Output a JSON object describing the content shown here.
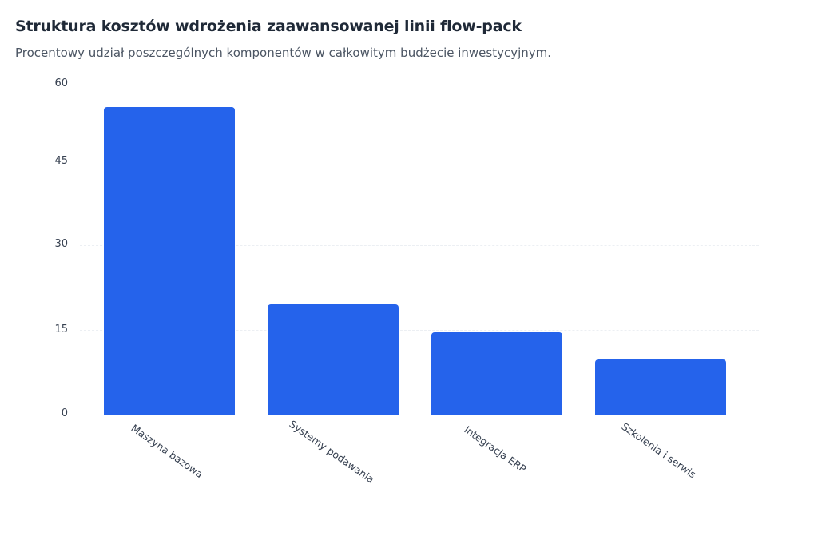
{
  "header": {
    "title": "Struktura kosztów wdrożenia zaawansowanej linii flow-pack",
    "subtitle": "Procentowy udział poszczególnych komponentów w całkowitym budżecie inwestycyjnym."
  },
  "colors": {
    "bar": "#2563eb",
    "grid": "#eceff3",
    "text": "#374151"
  },
  "chart_data": {
    "type": "bar",
    "title": "Struktura kosztów wdrożenia zaawansowanej linii flow-pack",
    "subtitle": "Procentowy udział poszczególnych komponentów w całkowitym budżecie inwestycyjnym.",
    "categories": [
      "Maszyna bazowa",
      "Systemy podawania",
      "Integracja ERP",
      "Szkolenia i serwis"
    ],
    "values": [
      56,
      20,
      15,
      10
    ],
    "xlabel": "",
    "ylabel": "",
    "ylim": [
      0,
      60
    ],
    "yticks": [
      "0",
      "15",
      "30",
      "45",
      "60"
    ],
    "grid": true,
    "legend": false
  }
}
